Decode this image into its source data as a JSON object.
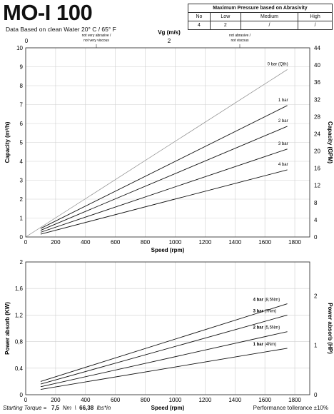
{
  "title": "MO-I 100",
  "subtitle": "Data Based on clean Water 20° C  /  65° F",
  "pressure_table": {
    "title": "Maximum Pressure based on Abrasivity",
    "headers": [
      "No",
      "Low",
      "Medium",
      "High"
    ],
    "values": [
      "4",
      "2",
      "/",
      "/"
    ]
  },
  "footer": {
    "torque_label": "Starting Torque =",
    "torque_nm": "7,5",
    "nm_unit": "Nm",
    "separator": "\\",
    "torque_lbs": "66,38",
    "lbs_unit": "lbs*in",
    "tolerance": "Performance tollerance ±10%"
  },
  "chart_data": [
    {
      "type": "line",
      "xlabel": "Speed (rpm)",
      "ylabel": "Capacity (m³/h)",
      "y2label": "Capacity (GPM)",
      "top_axis_label": "Vg (m/s)",
      "top_ticks": [
        "0",
        "2"
      ],
      "top_annotations": [
        "not very abrasive /\nnot very viscous",
        "not abrasive /\nnot viscous"
      ],
      "xlim": [
        0,
        1900
      ],
      "ylim": [
        0,
        10
      ],
      "y2lim": [
        0,
        44
      ],
      "x_ticks": [
        0,
        200,
        400,
        600,
        800,
        1000,
        1200,
        1400,
        1600,
        1800
      ],
      "y_ticks": [
        0,
        1,
        2,
        3,
        4,
        5,
        6,
        7,
        8,
        9,
        10
      ],
      "y2_ticks": [
        0,
        4,
        8,
        12,
        16,
        20,
        24,
        28,
        32,
        36,
        40,
        44
      ],
      "grid": true,
      "series": [
        {
          "name": "0 bar (Qth)",
          "x": [
            0,
            1750
          ],
          "y": [
            0,
            8.85
          ],
          "color": "#888888"
        },
        {
          "name": "1 bar",
          "x": [
            100,
            1750
          ],
          "y": [
            0.45,
            6.95
          ],
          "color": "#111111"
        },
        {
          "name": "2 bar",
          "x": [
            100,
            1750
          ],
          "y": [
            0.35,
            5.85
          ],
          "color": "#111111"
        },
        {
          "name": "3 bar",
          "x": [
            100,
            1750
          ],
          "y": [
            0.25,
            4.65
          ],
          "color": "#111111"
        },
        {
          "name": "4 bar",
          "x": [
            100,
            1750
          ],
          "y": [
            0.15,
            3.55
          ],
          "color": "#111111"
        }
      ]
    },
    {
      "type": "line",
      "xlabel": "Speed (rpm)",
      "ylabel": "Power absorb (KW)",
      "y2label": "Power absorb (HP)",
      "xlim": [
        0,
        1900
      ],
      "ylim": [
        0,
        2
      ],
      "y2lim": [
        0,
        2.682
      ],
      "x_ticks": [
        0,
        200,
        400,
        600,
        800,
        1000,
        1200,
        1400,
        1600,
        1800
      ],
      "y_ticks": [
        "0",
        "0,4",
        "0,8",
        "1,2",
        "1,6",
        "2"
      ],
      "y2_ticks": [
        0,
        1,
        2
      ],
      "grid": true,
      "series": [
        {
          "name": "4 bar",
          "note": "(8,5Nm)",
          "x": [
            100,
            1750
          ],
          "y": [
            0.2,
            1.37
          ],
          "color": "#111111"
        },
        {
          "name": "3 bar",
          "note": "(7Nm)",
          "x": [
            100,
            1750
          ],
          "y": [
            0.16,
            1.2
          ],
          "color": "#111111"
        },
        {
          "name": "2 bar",
          "note": "(5,5Nm)",
          "x": [
            100,
            1750
          ],
          "y": [
            0.12,
            0.95
          ],
          "color": "#111111"
        },
        {
          "name": "1 bar",
          "note": "(4Nm)",
          "x": [
            100,
            1750
          ],
          "y": [
            0.08,
            0.7
          ],
          "color": "#111111"
        }
      ]
    }
  ]
}
